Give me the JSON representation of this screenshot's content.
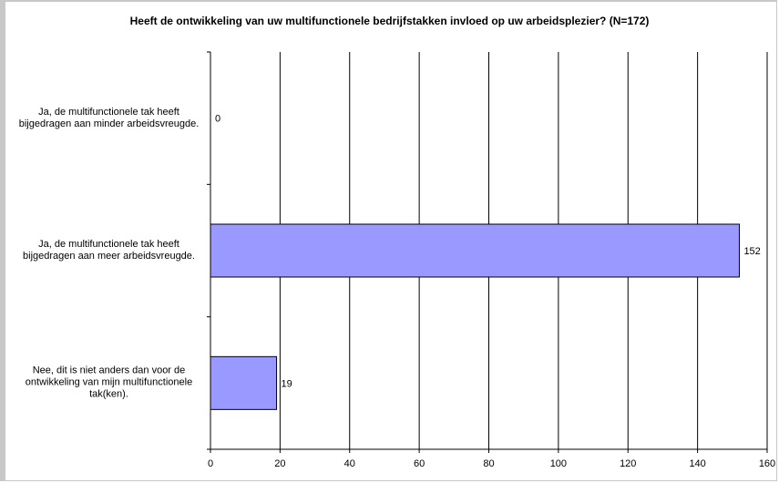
{
  "chart_data": {
    "type": "bar",
    "orientation": "horizontal",
    "title": "Heeft de ontwikkeling van uw multifunctionele bedrijfstakken invloed op uw arbeidsplezier? (N=172)",
    "categories": [
      "Ja, de multifunctionele tak heeft bijgedragen aan minder arbeidsvreugde.",
      "Ja, de multifunctionele tak heeft bijgedragen aan meer arbeidsvreugde.",
      "Nee, dit is niet anders dan voor de ontwikkeling van mijn multifunctionele tak(ken)."
    ],
    "values": [
      0,
      152,
      19
    ],
    "data_labels": [
      "0",
      "152",
      "19"
    ],
    "xlim": [
      0,
      160
    ],
    "x_ticks": [
      0,
      20,
      40,
      60,
      80,
      100,
      120,
      140,
      160
    ],
    "x_tick_labels": [
      "0",
      "20",
      "40",
      "60",
      "80",
      "100",
      "120",
      "140",
      "160"
    ],
    "grid": "vertical",
    "legend": "none",
    "bar_color": "#9999ff",
    "bar_border_color": "#000000",
    "gridline_color": "#000000"
  }
}
